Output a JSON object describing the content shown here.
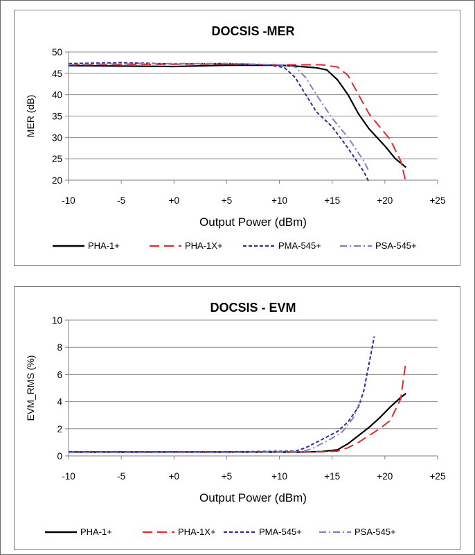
{
  "chart_data": [
    {
      "type": "line",
      "title": "DOCSIS -MER",
      "xlabel": "Output Power (dBm)",
      "ylabel": "MER (dB)",
      "xlim": [
        -10,
        25
      ],
      "ylim": [
        20,
        50
      ],
      "x_ticks": [
        -10,
        -5,
        0,
        5,
        10,
        15,
        20,
        25
      ],
      "x_tick_labels": [
        "-10",
        "-5",
        "+0",
        "+5",
        "+10",
        "+15",
        "+20",
        "+25"
      ],
      "y_ticks": [
        20,
        25,
        30,
        35,
        40,
        45,
        50
      ],
      "y_tick_labels": [
        "20",
        "25",
        "30",
        "35",
        "40",
        "45",
        "50"
      ],
      "grid": "horizontal",
      "legend_position": "bottom",
      "series": [
        {
          "name": "PHA-1+",
          "color": "#000000",
          "dash": "solid",
          "points": [
            [
              -10,
              46.8
            ],
            [
              0,
              46.6
            ],
            [
              5,
              46.9
            ],
            [
              10,
              46.9
            ],
            [
              12,
              46.6
            ],
            [
              13.5,
              46.3
            ],
            [
              14.5,
              45.8
            ],
            [
              15.5,
              43.5
            ],
            [
              16.5,
              40.0
            ],
            [
              17.5,
              35.5
            ],
            [
              18.5,
              32.0
            ],
            [
              20,
              28.0
            ],
            [
              21,
              25.0
            ],
            [
              22,
              23.0
            ]
          ]
        },
        {
          "name": "PHA-1X+",
          "color": "#e8262d",
          "dash": "long",
          "points": [
            [
              -10,
              47.0
            ],
            [
              5,
              47.2
            ],
            [
              10,
              47.0
            ],
            [
              14,
              47.0
            ],
            [
              15.5,
              46.5
            ],
            [
              16.5,
              44.5
            ],
            [
              17.5,
              40.0
            ],
            [
              18.5,
              35.5
            ],
            [
              19.5,
              32.5
            ],
            [
              20.5,
              29.5
            ],
            [
              21.5,
              24.5
            ],
            [
              22,
              19.5
            ]
          ]
        },
        {
          "name": "PMA-545+",
          "color": "#2a2f8f",
          "dash": "short",
          "points": [
            [
              -10,
              47.3
            ],
            [
              -5,
              47.5
            ],
            [
              0,
              47.2
            ],
            [
              5,
              47.3
            ],
            [
              9,
              47.0
            ],
            [
              10.5,
              46.3
            ],
            [
              11.5,
              44.0
            ],
            [
              12.5,
              40.0
            ],
            [
              13.5,
              36.0
            ],
            [
              15,
              32.5
            ],
            [
              16.5,
              27.5
            ],
            [
              18,
              22.0
            ],
            [
              18.5,
              19.5
            ]
          ]
        },
        {
          "name": "PSA-545+",
          "color": "#7d80c9",
          "dash": "dashdot",
          "points": [
            [
              -10,
              47.1
            ],
            [
              0,
              47.3
            ],
            [
              5,
              47.3
            ],
            [
              10,
              47.0
            ],
            [
              11.5,
              46.5
            ],
            [
              12.5,
              44.0
            ],
            [
              13.5,
              40.0
            ],
            [
              15,
              34.5
            ],
            [
              16.5,
              30.0
            ],
            [
              18,
              24.5
            ],
            [
              18.5,
              22.0
            ]
          ]
        }
      ]
    },
    {
      "type": "line",
      "title": "DOCSIS - EVM",
      "xlabel": "Output Power (dBm)",
      "ylabel": "EVM_RMS (%)",
      "xlim": [
        -10,
        25
      ],
      "ylim": [
        0,
        10
      ],
      "x_ticks": [
        -10,
        -5,
        0,
        5,
        10,
        15,
        20,
        25
      ],
      "x_tick_labels": [
        "-10",
        "-5",
        "+0",
        "+5",
        "+10",
        "+15",
        "+20",
        "+25"
      ],
      "y_ticks": [
        0,
        2,
        4,
        6,
        8,
        10
      ],
      "y_tick_labels": [
        "0",
        "2",
        "4",
        "6",
        "8",
        "10"
      ],
      "grid": "horizontal",
      "legend_position": "bottom",
      "series": [
        {
          "name": "PHA-1+",
          "color": "#000000",
          "dash": "solid",
          "points": [
            [
              -10,
              0.28
            ],
            [
              5,
              0.28
            ],
            [
              12,
              0.28
            ],
            [
              14,
              0.32
            ],
            [
              15.5,
              0.45
            ],
            [
              16.5,
              0.9
            ],
            [
              17.5,
              1.5
            ],
            [
              18.5,
              2.1
            ],
            [
              19.5,
              2.8
            ],
            [
              20.5,
              3.6
            ],
            [
              21.5,
              4.3
            ],
            [
              22,
              4.6
            ]
          ]
        },
        {
          "name": "PHA-1X+",
          "color": "#e8262d",
          "dash": "long",
          "points": [
            [
              -10,
              0.3
            ],
            [
              5,
              0.3
            ],
            [
              14,
              0.3
            ],
            [
              15.5,
              0.35
            ],
            [
              16.5,
              0.6
            ],
            [
              17.5,
              1.0
            ],
            [
              18.5,
              1.5
            ],
            [
              19.5,
              2.0
            ],
            [
              20.5,
              2.6
            ],
            [
              21.5,
              4.2
            ],
            [
              22,
              7.0
            ]
          ]
        },
        {
          "name": "PMA-545+",
          "color": "#2a2f8f",
          "dash": "short",
          "points": [
            [
              -10,
              0.3
            ],
            [
              5,
              0.3
            ],
            [
              11.5,
              0.35
            ],
            [
              12.5,
              0.6
            ],
            [
              13.5,
              1.0
            ],
            [
              14.5,
              1.4
            ],
            [
              15.5,
              1.8
            ],
            [
              16.5,
              2.5
            ],
            [
              17.5,
              3.6
            ],
            [
              18,
              4.8
            ],
            [
              18.5,
              6.8
            ],
            [
              19,
              8.8
            ]
          ]
        },
        {
          "name": "PSA-545+",
          "color": "#7d80c9",
          "dash": "dashdot",
          "points": [
            [
              -10,
              0.25
            ],
            [
              5,
              0.25
            ],
            [
              12,
              0.3
            ],
            [
              13,
              0.5
            ],
            [
              14,
              0.9
            ],
            [
              15,
              1.3
            ],
            [
              16,
              1.8
            ],
            [
              17,
              2.8
            ],
            [
              17.8,
              4.3
            ]
          ]
        }
      ]
    }
  ]
}
